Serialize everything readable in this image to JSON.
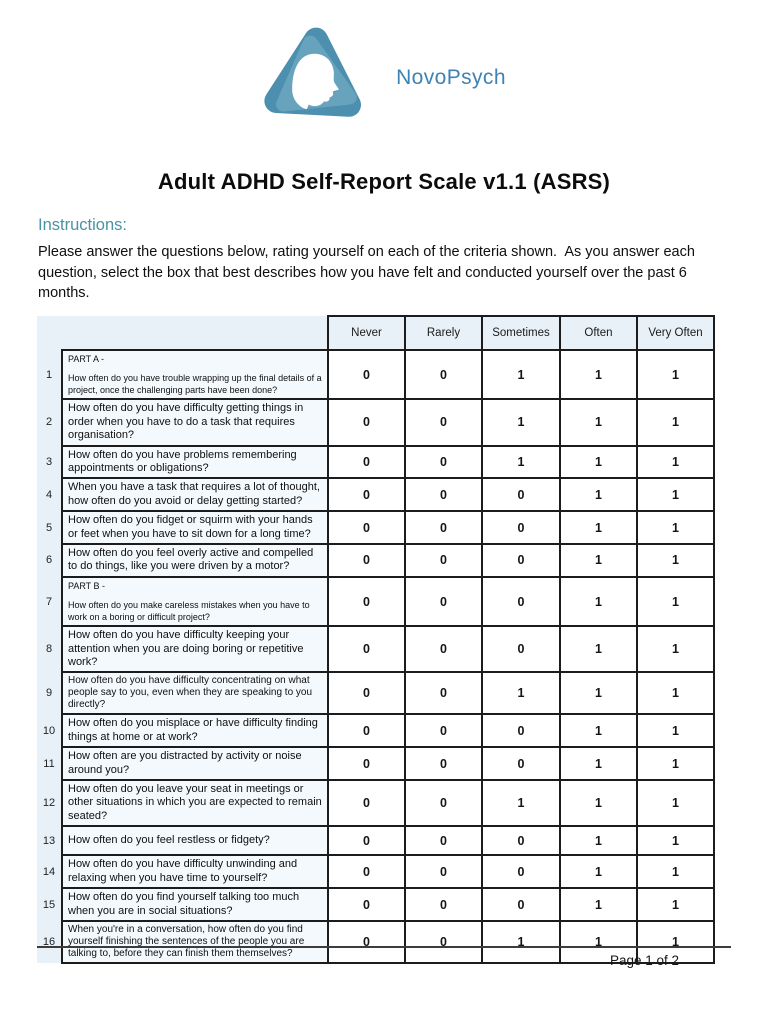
{
  "logo": {
    "brand": "NovoPsych"
  },
  "page": {
    "title": "Adult ADHD Self-Report Scale v1.1 (ASRS)",
    "instructions_heading": "Instructions:",
    "instructions_body": "Please answer the questions below, rating yourself on each of the criteria shown.  As you answer each question, select the box that best describes how you have felt and conducted yourself over the past 6 months.",
    "footer_page_label": "Page 1 of 2"
  },
  "table": {
    "columns": [
      "Never",
      "Rarely",
      "Sometimes",
      "Often",
      "Very Often"
    ],
    "rows": [
      {
        "num": "1",
        "part": "PART A -",
        "size": "small",
        "question": "How often do you have trouble wrapping up the final details of a project, once the challenging parts have been done?",
        "values": [
          "0",
          "0",
          "1",
          "1",
          "1"
        ]
      },
      {
        "num": "2",
        "question": "How often do you have difficulty getting things in order when you have to do a task that requires organisation?",
        "values": [
          "0",
          "0",
          "1",
          "1",
          "1"
        ]
      },
      {
        "num": "3",
        "question": "How often do you have problems remembering appointments or obligations?",
        "values": [
          "0",
          "0",
          "1",
          "1",
          "1"
        ]
      },
      {
        "num": "4",
        "question": "When you have a task that requires a lot of thought, how often do you avoid or delay getting started?",
        "values": [
          "0",
          "0",
          "0",
          "1",
          "1"
        ]
      },
      {
        "num": "5",
        "question": "How often do you fidget or squirm with your hands or feet when you have to sit down for a long time?",
        "values": [
          "0",
          "0",
          "0",
          "1",
          "1"
        ]
      },
      {
        "num": "6",
        "question": "How often do you feel overly active and compelled to do things, like you were driven by a motor?",
        "values": [
          "0",
          "0",
          "0",
          "1",
          "1"
        ]
      },
      {
        "num": "7",
        "part": "PART B -",
        "size": "small",
        "question": "How often do you make careless mistakes when you have to work on a boring or difficult project?",
        "values": [
          "0",
          "0",
          "0",
          "1",
          "1"
        ]
      },
      {
        "num": "8",
        "question": "How often do you have difficulty keeping your attention when you are doing boring or repetitive work?",
        "values": [
          "0",
          "0",
          "0",
          "1",
          "1"
        ]
      },
      {
        "num": "9",
        "size": "mid",
        "question": "How often do you have difficulty concentrating on what people say to you, even when they are speaking to you directly?",
        "values": [
          "0",
          "0",
          "1",
          "1",
          "1"
        ]
      },
      {
        "num": "10",
        "question": "How often do you misplace or have difficulty finding things at home or at work?",
        "values": [
          "0",
          "0",
          "0",
          "1",
          "1"
        ]
      },
      {
        "num": "11",
        "question": "How often are you distracted by activity or noise around you?",
        "values": [
          "0",
          "0",
          "0",
          "1",
          "1"
        ]
      },
      {
        "num": "12",
        "question": "How often do you leave your seat in meetings or other situations in which you are expected to remain seated?",
        "values": [
          "0",
          "0",
          "1",
          "1",
          "1"
        ]
      },
      {
        "num": "13",
        "question": "How often do you feel restless or fidgety?",
        "values": [
          "0",
          "0",
          "0",
          "1",
          "1"
        ]
      },
      {
        "num": "14",
        "question": "How often do you have difficulty unwinding and relaxing when you have time to yourself?",
        "values": [
          "0",
          "0",
          "0",
          "1",
          "1"
        ]
      },
      {
        "num": "15",
        "question": "How often do you find yourself talking too much when you are in social situations?",
        "values": [
          "0",
          "0",
          "0",
          "1",
          "1"
        ]
      },
      {
        "num": "16",
        "size": "mid",
        "question": "When you're in a conversation, how often do you find yourself finishing the sentences of the people you are talking to, before they can finish them themselves?",
        "values": [
          "0",
          "0",
          "1",
          "1",
          "1"
        ]
      }
    ]
  },
  "colors": {
    "brand_blue": "#3f82b4",
    "heading_teal": "#4a93a3",
    "table_blue_bg": "#e9f1f8",
    "question_cell_bg": "#f4f9fd",
    "logo_ring": "#4c8fae",
    "logo_ring_light": "#7db4cb"
  }
}
